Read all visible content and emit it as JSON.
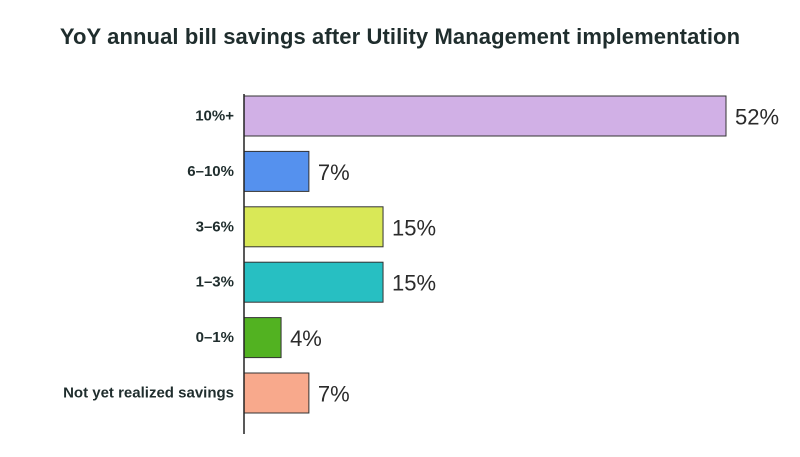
{
  "chart_data": {
    "type": "bar",
    "orientation": "horizontal",
    "title": "YoY annual bill savings after Utility Management implementation",
    "xlabel": "",
    "ylabel": "",
    "categories": [
      "10%+",
      "6–10%",
      "3–6%",
      "1–3%",
      "0–1%",
      "Not yet realized savings"
    ],
    "values": [
      52,
      7,
      15,
      15,
      4,
      7
    ],
    "value_labels": [
      "52%",
      "7%",
      "15%",
      "15%",
      "4%",
      "7%"
    ],
    "colors": [
      "#d1b0e6",
      "#5591ee",
      "#d9e857",
      "#27bfc2",
      "#52b221",
      "#f8a98c"
    ],
    "xlim": [
      0,
      52
    ],
    "grid": false,
    "legend": "none"
  }
}
